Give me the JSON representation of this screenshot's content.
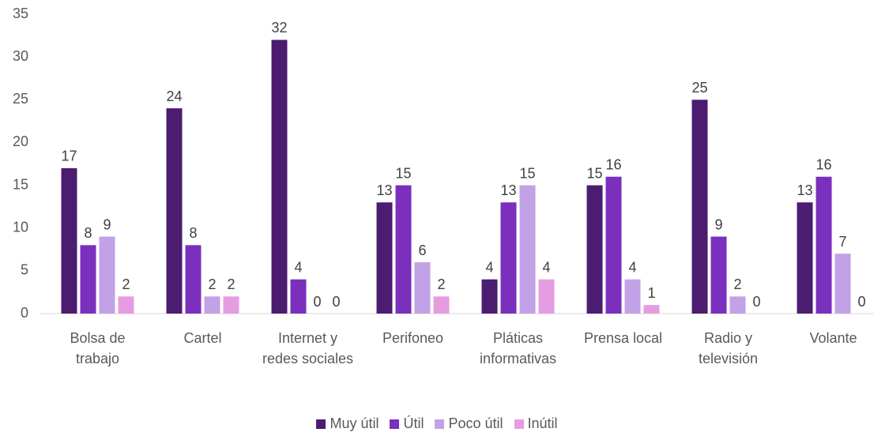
{
  "chart_data": {
    "type": "bar",
    "categories": [
      "Bolsa de trabajo",
      "Cartel",
      "Internet y redes sociales",
      "Perifoneo",
      "Pláticas informativas",
      "Prensa local",
      "Radio y televisión",
      "Volante"
    ],
    "series": [
      {
        "name": "Muy útil",
        "color": "#4b1c70",
        "values": [
          17,
          24,
          32,
          13,
          4,
          15,
          25,
          13
        ]
      },
      {
        "name": "Útil",
        "color": "#7a2fbd",
        "values": [
          8,
          8,
          4,
          15,
          13,
          16,
          9,
          16
        ]
      },
      {
        "name": "Poco útil",
        "color": "#c3a1e6",
        "values": [
          9,
          2,
          0,
          6,
          15,
          4,
          2,
          7
        ]
      },
      {
        "name": "Inútil",
        "color": "#e69ce0",
        "values": [
          2,
          2,
          0,
          2,
          4,
          1,
          0,
          0
        ]
      }
    ],
    "ylim": [
      0,
      35
    ],
    "yticks": [
      0,
      5,
      10,
      15,
      20,
      25,
      30,
      35
    ],
    "grid": false,
    "legend": "bottom"
  }
}
